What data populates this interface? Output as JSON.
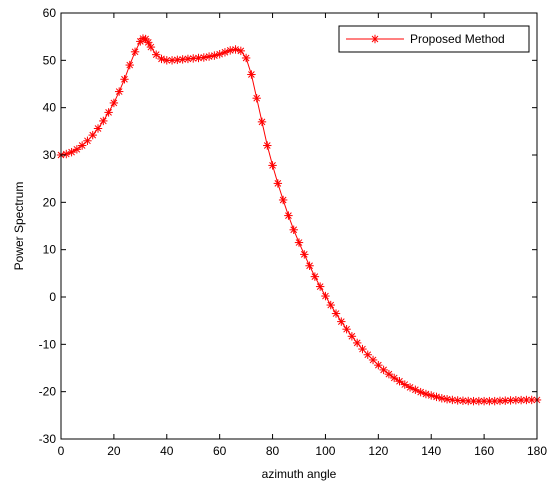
{
  "chart_data": {
    "type": "line",
    "xlabel": "azimuth angle",
    "ylabel": "Power Spectrum",
    "xlim": [
      0,
      180
    ],
    "ylim": [
      -30,
      60
    ],
    "xticks": [
      0,
      20,
      40,
      60,
      80,
      100,
      120,
      140,
      160,
      180
    ],
    "yticks": [
      -30,
      -20,
      -10,
      0,
      10,
      20,
      30,
      40,
      50,
      60
    ],
    "grid": false,
    "legend_position": "top-right",
    "series": [
      {
        "name": "Proposed Method",
        "color": "#ff0000",
        "marker": "asterisk",
        "x": [
          0,
          2,
          4,
          6,
          8,
          10,
          12,
          14,
          16,
          18,
          20,
          22,
          24,
          26,
          28,
          30,
          31,
          32,
          33,
          34,
          36,
          38,
          40,
          42,
          44,
          46,
          48,
          50,
          52,
          54,
          56,
          58,
          60,
          62,
          64,
          66,
          68,
          70,
          72,
          74,
          76,
          78,
          80,
          82,
          84,
          86,
          88,
          90,
          92,
          94,
          96,
          98,
          100,
          102,
          104,
          106,
          108,
          110,
          112,
          114,
          116,
          118,
          120,
          122,
          124,
          126,
          128,
          130,
          132,
          134,
          136,
          138,
          140,
          142,
          144,
          146,
          148,
          150,
          152,
          154,
          156,
          158,
          160,
          162,
          164,
          166,
          168,
          170,
          172,
          174,
          176,
          178,
          180
        ],
        "y": [
          30,
          30.2,
          30.6,
          31.2,
          32,
          33,
          34.2,
          35.6,
          37.2,
          39,
          41,
          43.4,
          46,
          49,
          51.8,
          54,
          54.6,
          54.5,
          53.8,
          52.8,
          51.2,
          50.3,
          50,
          50,
          50.1,
          50.2,
          50.3,
          50.4,
          50.5,
          50.6,
          50.8,
          51,
          51.3,
          51.7,
          52.1,
          52.3,
          52,
          50.5,
          47,
          42,
          37,
          32,
          27.8,
          24,
          20.5,
          17.2,
          14.2,
          11.5,
          9,
          6.6,
          4.3,
          2.2,
          0.2,
          -1.7,
          -3.5,
          -5.2,
          -6.8,
          -8.3,
          -9.7,
          -11,
          -12.2,
          -13.3,
          -14.4,
          -15.4,
          -16.3,
          -17.1,
          -17.8,
          -18.5,
          -19.1,
          -19.6,
          -20.1,
          -20.5,
          -20.8,
          -21.1,
          -21.4,
          -21.6,
          -21.75,
          -21.85,
          -21.92,
          -21.97,
          -22,
          -22,
          -22,
          -22,
          -22,
          -21.95,
          -21.9,
          -21.85,
          -21.8,
          -21.78,
          -21.76,
          -21.75,
          -21.75
        ]
      }
    ]
  }
}
